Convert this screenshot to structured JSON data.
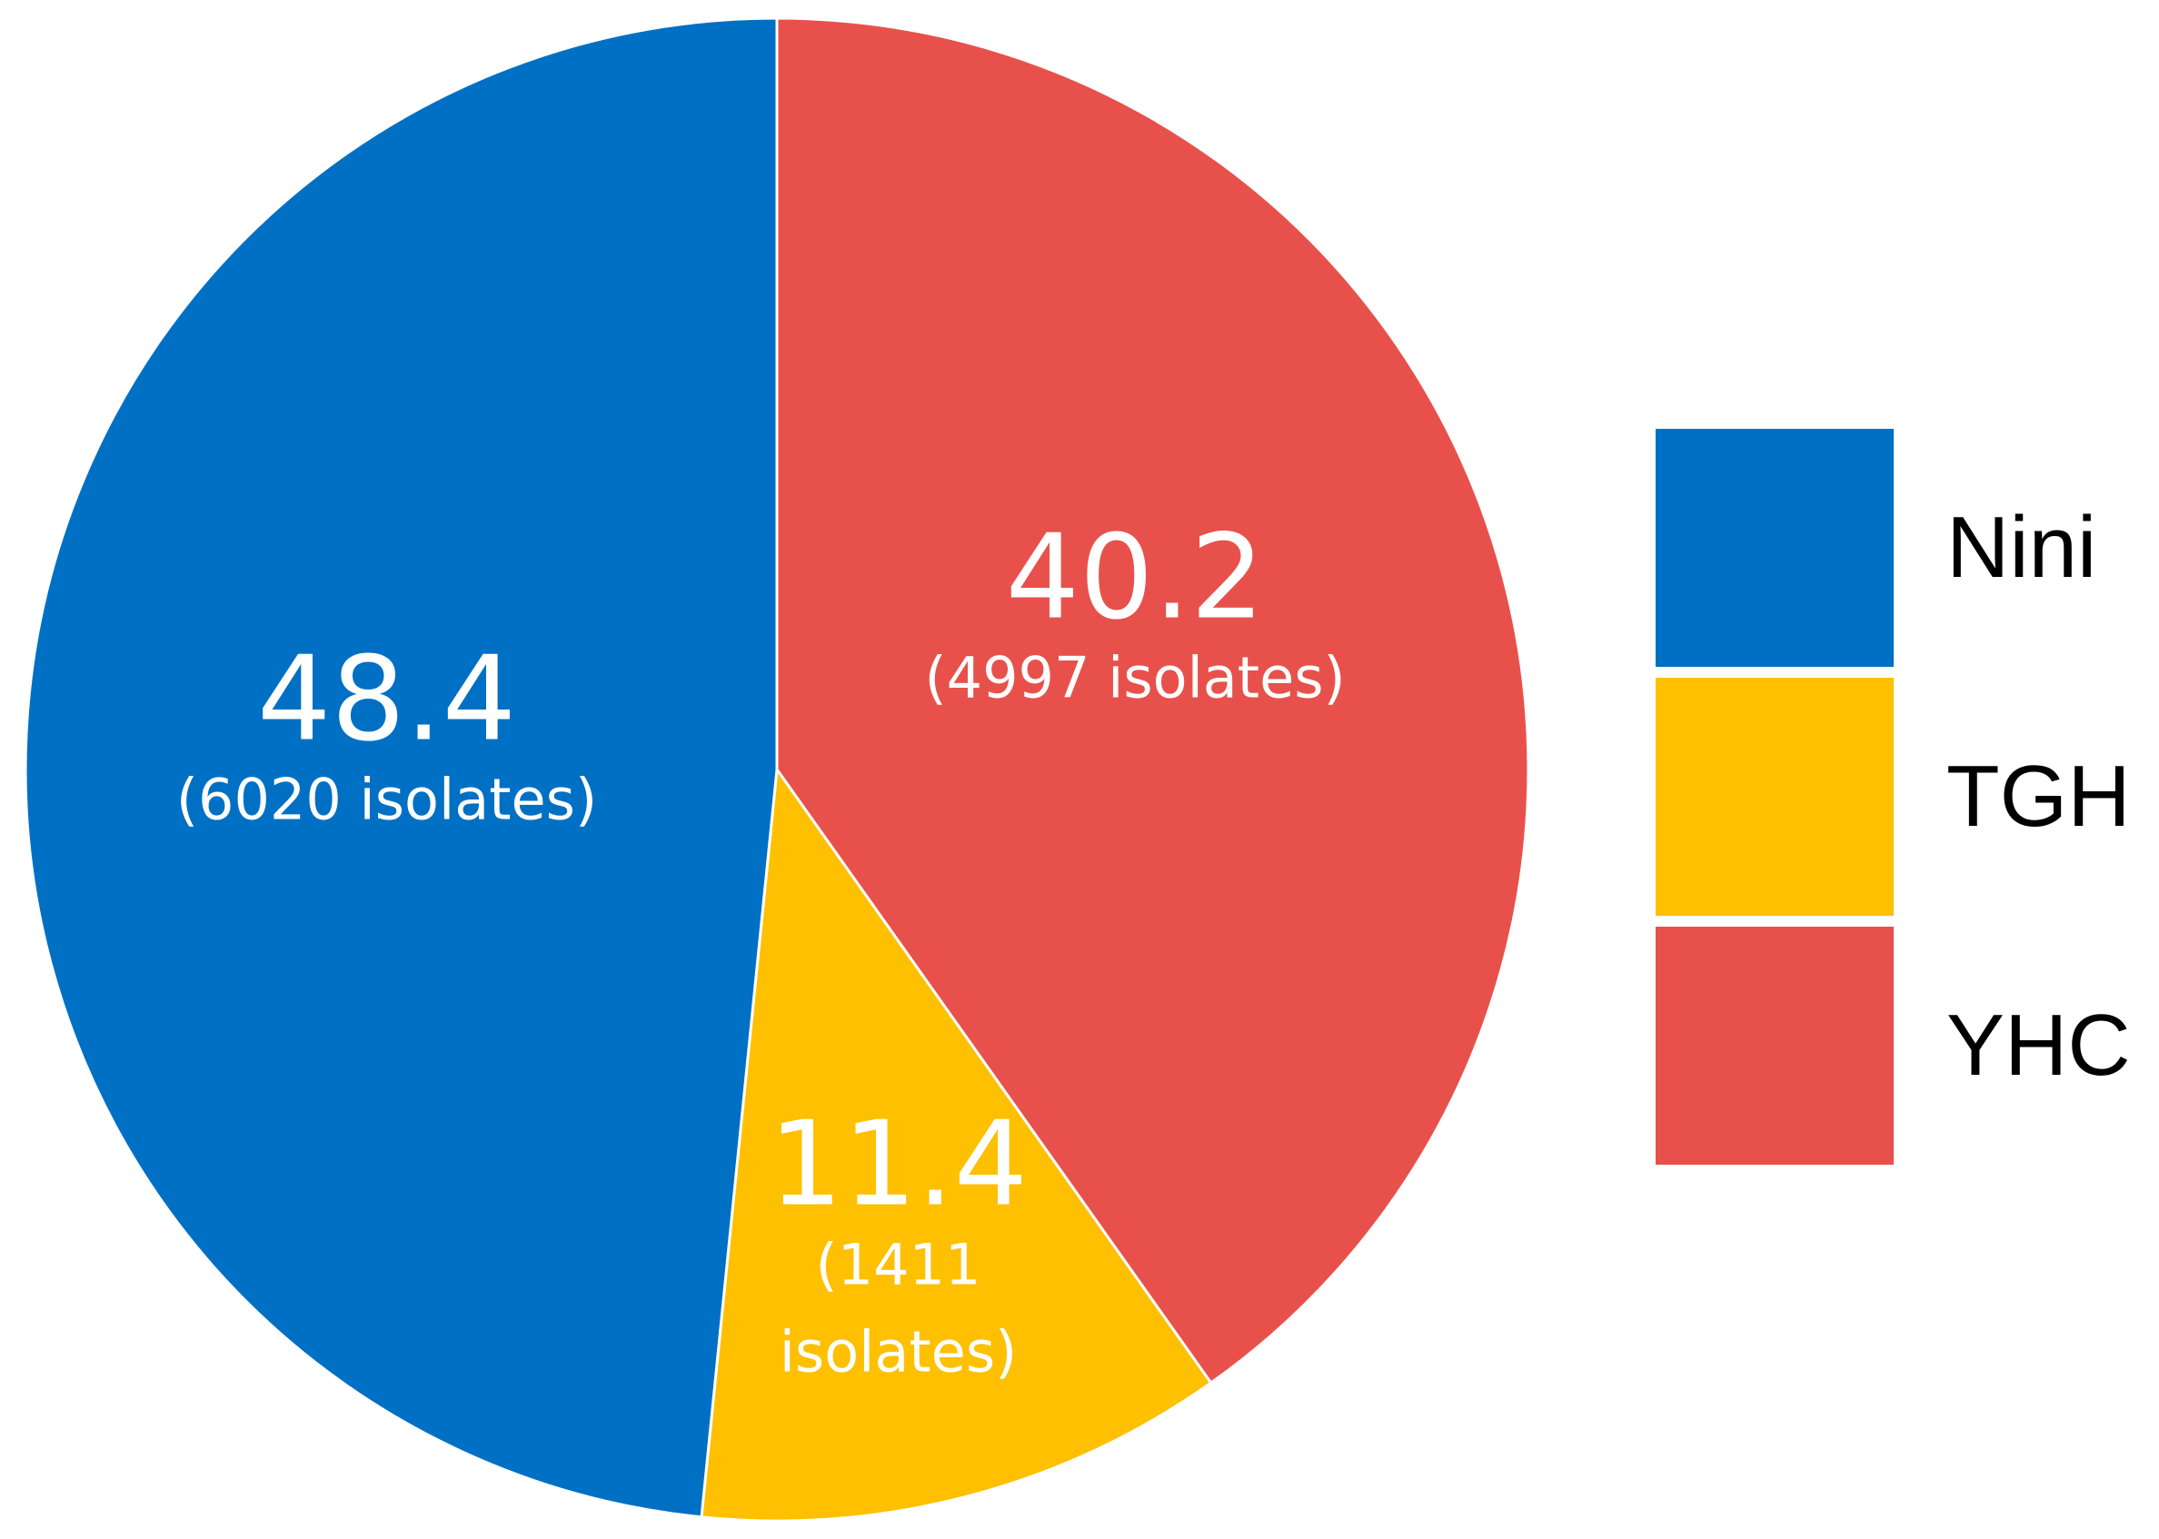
{
  "chart_data": {
    "type": "pie",
    "slices": [
      {
        "name": "Nini",
        "value": 48.4,
        "count_label": "(6020 isolates)",
        "color": "#0070C4"
      },
      {
        "name": "TGH",
        "value": 11.4,
        "count_label_lines": [
          "(1411",
          "isolates)"
        ],
        "color": "#FEC000"
      },
      {
        "name": "YHC",
        "value": 40.2,
        "count_label": "(4997 isolates)",
        "color": "#E8514B"
      }
    ],
    "legend": {
      "position": "right",
      "entries": [
        "Nini",
        "TGH",
        "YHC"
      ]
    },
    "start": "12 o'clock",
    "direction": "clockwise order: YHC, TGH, Nini"
  }
}
